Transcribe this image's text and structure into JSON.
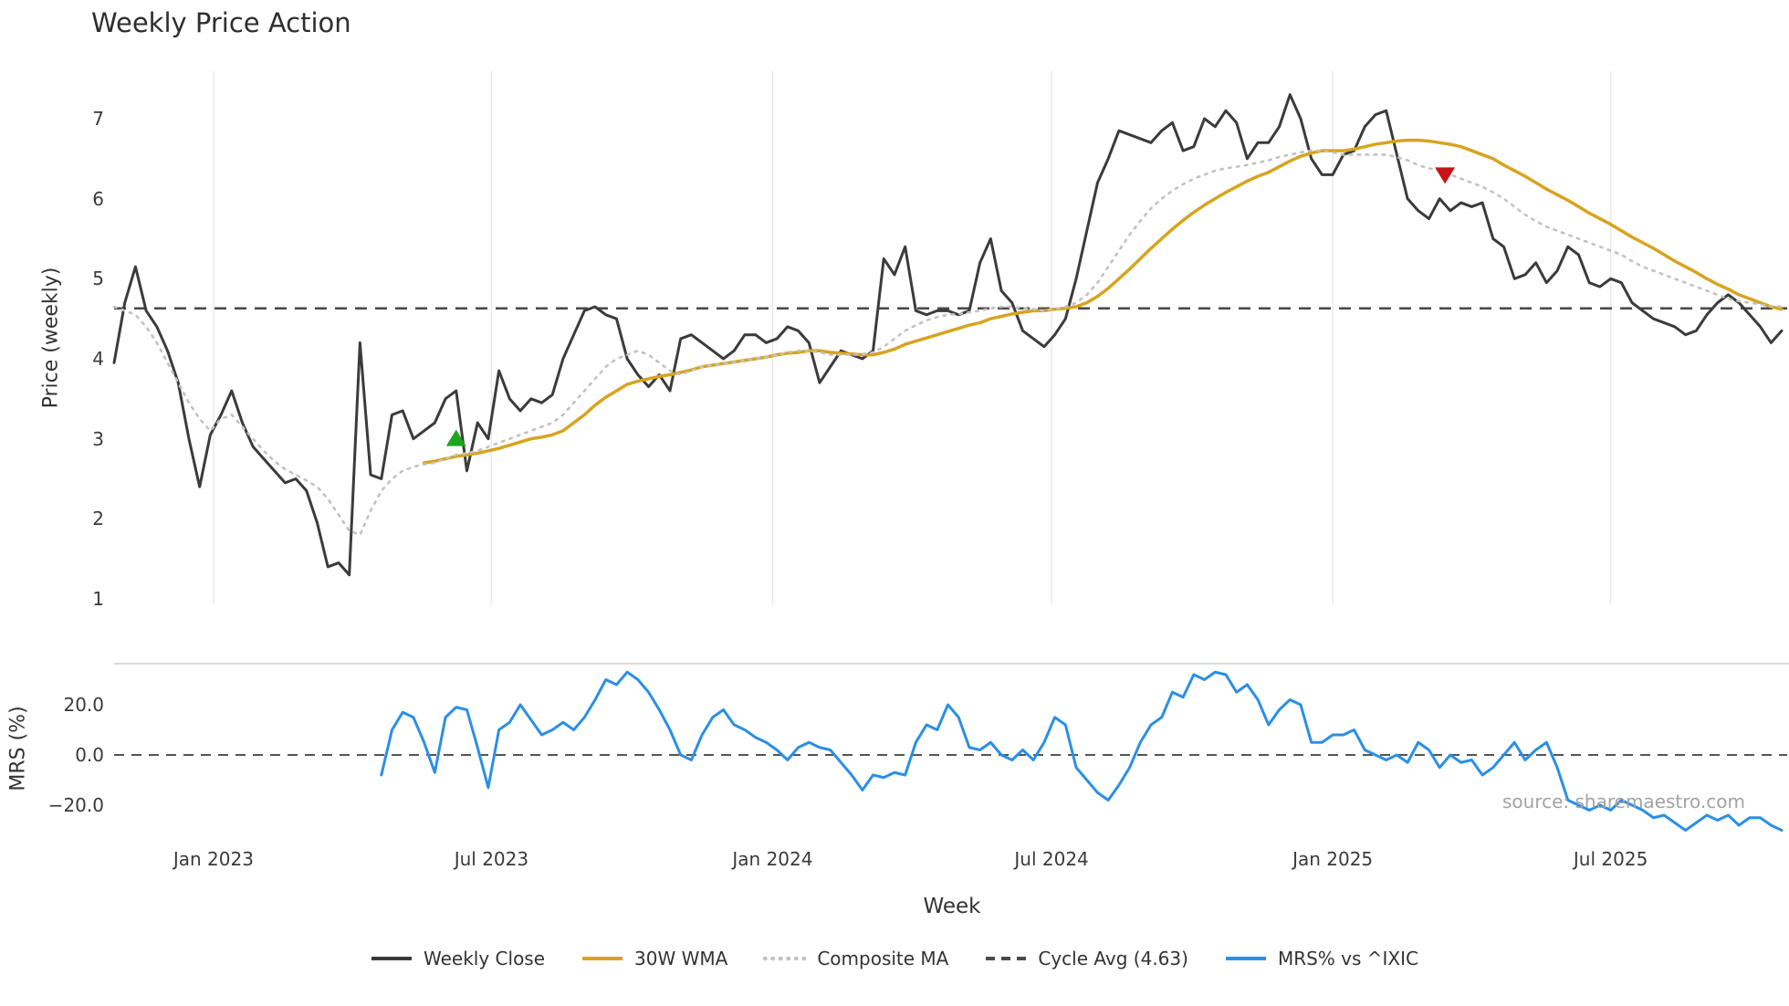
{
  "watermark": "source: sharemaestro.com",
  "chart_data": {
    "type": "line",
    "title": "Weekly Price Action",
    "xlabel": "Week",
    "ylabels": {
      "price": "Price (weekly)",
      "mrs": "MRS (%)"
    },
    "x_unit": "week-index",
    "price_ylim": [
      0.85,
      7.6
    ],
    "mrs_ylim": [
      -32,
      37
    ],
    "grid": "vertical lines at x ticks (price panel only)",
    "legend_position": "bottom-center",
    "x_ticks": [
      {
        "index": 9.3,
        "label": "Jan 2023"
      },
      {
        "index": 35.3,
        "label": "Jul 2023"
      },
      {
        "index": 61.6,
        "label": "Jan 2024"
      },
      {
        "index": 87.7,
        "label": "Jul 2024"
      },
      {
        "index": 114.0,
        "label": "Jan 2025"
      },
      {
        "index": 140.0,
        "label": "Jul 2025"
      }
    ],
    "price_ticks": [
      {
        "value": 7,
        "label": "7"
      },
      {
        "value": 6,
        "label": "6"
      },
      {
        "value": 5,
        "label": "5"
      },
      {
        "value": 4,
        "label": "4"
      },
      {
        "value": 3,
        "label": "3"
      },
      {
        "value": 2,
        "label": "2"
      },
      {
        "value": 1,
        "label": "1"
      }
    ],
    "mrs_ticks": [
      {
        "value": 20,
        "label": "20.0"
      },
      {
        "value": 0,
        "label": "0.0"
      },
      {
        "value": -20,
        "label": "−20.0"
      }
    ],
    "cycle_avg": {
      "label": "Cycle Avg (4.63)",
      "value": 4.63,
      "color": "#4a4a4a",
      "style": "dashed"
    },
    "markers": [
      {
        "name": "buy-signal",
        "shape": "triangle-up",
        "color": "#1ea41e",
        "index": 32,
        "value": 3.0
      },
      {
        "name": "sell-signal",
        "shape": "triangle-down",
        "color": "#c81414",
        "index": 124.5,
        "value": 6.3
      }
    ],
    "series": [
      {
        "name": "Weekly Close",
        "color": "#3b3b3b",
        "style": "solid",
        "panel": "price",
        "values": [
          3.95,
          4.7,
          5.15,
          4.6,
          4.4,
          4.1,
          3.7,
          3.0,
          2.4,
          3.05,
          3.3,
          3.6,
          3.2,
          2.9,
          2.75,
          2.6,
          2.45,
          2.5,
          2.35,
          1.95,
          1.4,
          1.45,
          1.3,
          4.2,
          2.55,
          2.5,
          3.3,
          3.35,
          3.0,
          3.1,
          3.2,
          3.5,
          3.6,
          2.6,
          3.2,
          3.0,
          3.85,
          3.5,
          3.35,
          3.5,
          3.45,
          3.55,
          4.0,
          4.3,
          4.6,
          4.65,
          4.55,
          4.5,
          4.0,
          3.8,
          3.65,
          3.8,
          3.6,
          4.25,
          4.3,
          4.2,
          4.1,
          4.0,
          4.1,
          4.3,
          4.3,
          4.2,
          4.25,
          4.4,
          4.35,
          4.2,
          3.7,
          3.9,
          4.1,
          4.05,
          4.0,
          4.1,
          5.25,
          5.05,
          5.4,
          4.6,
          4.55,
          4.6,
          4.6,
          4.55,
          4.6,
          5.2,
          5.5,
          4.85,
          4.7,
          4.35,
          4.25,
          4.15,
          4.3,
          4.5,
          5.0,
          5.6,
          6.2,
          6.5,
          6.85,
          6.8,
          6.75,
          6.7,
          6.85,
          6.95,
          6.6,
          6.65,
          7.0,
          6.9,
          7.1,
          6.95,
          6.5,
          6.7,
          6.7,
          6.9,
          7.3,
          7.0,
          6.5,
          6.3,
          6.3,
          6.55,
          6.6,
          6.9,
          7.05,
          7.1,
          6.55,
          6.0,
          5.85,
          5.75,
          6.0,
          5.85,
          5.95,
          5.9,
          5.95,
          5.5,
          5.4,
          5.0,
          5.05,
          5.2,
          4.95,
          5.1,
          5.4,
          5.3,
          4.95,
          4.9,
          5.0,
          4.95,
          4.7,
          4.6,
          4.5,
          4.45,
          4.4,
          4.3,
          4.35,
          4.55,
          4.7,
          4.8,
          4.7,
          4.55,
          4.4,
          4.2,
          4.35
        ]
      },
      {
        "name": "30W WMA",
        "color": "#d7a41e",
        "style": "solid",
        "panel": "price",
        "values": [
          null,
          null,
          null,
          null,
          null,
          null,
          null,
          null,
          null,
          null,
          null,
          null,
          null,
          null,
          null,
          null,
          null,
          null,
          null,
          null,
          null,
          null,
          null,
          null,
          null,
          null,
          null,
          null,
          null,
          2.7,
          2.72,
          2.75,
          2.78,
          2.8,
          2.82,
          2.85,
          2.88,
          2.92,
          2.96,
          3.0,
          3.02,
          3.05,
          3.1,
          3.2,
          3.3,
          3.42,
          3.52,
          3.6,
          3.68,
          3.72,
          3.75,
          3.78,
          3.8,
          3.83,
          3.86,
          3.9,
          3.92,
          3.94,
          3.96,
          3.98,
          4.0,
          4.02,
          4.05,
          4.07,
          4.08,
          4.1,
          4.1,
          4.08,
          4.07,
          4.06,
          4.05,
          4.05,
          4.08,
          4.12,
          4.18,
          4.22,
          4.26,
          4.3,
          4.34,
          4.38,
          4.42,
          4.45,
          4.5,
          4.53,
          4.56,
          4.58,
          4.6,
          4.6,
          4.62,
          4.63,
          4.65,
          4.7,
          4.78,
          4.88,
          5.0,
          5.12,
          5.25,
          5.38,
          5.5,
          5.62,
          5.73,
          5.83,
          5.92,
          6.0,
          6.08,
          6.15,
          6.22,
          6.28,
          6.33,
          6.4,
          6.47,
          6.53,
          6.57,
          6.6,
          6.6,
          6.6,
          6.62,
          6.65,
          6.68,
          6.7,
          6.72,
          6.73,
          6.73,
          6.72,
          6.7,
          6.68,
          6.65,
          6.6,
          6.55,
          6.5,
          6.42,
          6.35,
          6.28,
          6.2,
          6.12,
          6.05,
          5.98,
          5.9,
          5.82,
          5.75,
          5.68,
          5.6,
          5.52,
          5.45,
          5.38,
          5.3,
          5.22,
          5.15,
          5.08,
          5.0,
          4.93,
          4.87,
          4.8,
          4.75,
          4.7,
          4.65,
          4.62
        ]
      },
      {
        "name": "Composite MA",
        "color": "#c2c2c2",
        "style": "dotted",
        "panel": "price",
        "values": [
          4.65,
          4.6,
          4.55,
          4.4,
          4.2,
          3.95,
          3.7,
          3.45,
          3.25,
          3.1,
          3.25,
          3.3,
          3.15,
          3.0,
          2.85,
          2.72,
          2.62,
          2.55,
          2.48,
          2.4,
          2.25,
          2.05,
          1.85,
          1.8,
          2.1,
          2.35,
          2.5,
          2.6,
          2.65,
          2.68,
          2.7,
          2.75,
          2.8,
          2.82,
          2.85,
          2.9,
          2.95,
          3.0,
          3.05,
          3.1,
          3.15,
          3.2,
          3.3,
          3.45,
          3.6,
          3.75,
          3.9,
          4.0,
          4.05,
          4.1,
          4.05,
          3.95,
          3.85,
          3.8,
          3.85,
          3.9,
          3.92,
          3.94,
          3.96,
          3.98,
          4.0,
          4.02,
          4.05,
          4.08,
          4.1,
          4.1,
          4.08,
          4.05,
          4.05,
          4.05,
          4.06,
          4.08,
          4.15,
          4.25,
          4.35,
          4.42,
          4.48,
          4.52,
          4.55,
          4.56,
          4.58,
          4.6,
          4.63,
          4.65,
          4.65,
          4.63,
          4.62,
          4.6,
          4.62,
          4.65,
          4.7,
          4.8,
          4.95,
          5.15,
          5.35,
          5.55,
          5.72,
          5.88,
          6.0,
          6.1,
          6.18,
          6.25,
          6.3,
          6.35,
          6.38,
          6.4,
          6.42,
          6.45,
          6.48,
          6.52,
          6.55,
          6.58,
          6.6,
          6.6,
          6.58,
          6.55,
          6.55,
          6.55,
          6.55,
          6.55,
          6.52,
          6.48,
          6.42,
          6.38,
          6.35,
          6.3,
          6.25,
          6.2,
          6.15,
          6.08,
          6.0,
          5.9,
          5.8,
          5.72,
          5.65,
          5.6,
          5.55,
          5.5,
          5.45,
          5.4,
          5.35,
          5.3,
          5.22,
          5.15,
          5.1,
          5.05,
          5.0,
          4.95,
          4.9,
          4.85,
          4.8,
          4.75,
          4.72,
          4.7,
          4.68,
          4.66,
          4.65
        ]
      },
      {
        "name": "MRS% vs ^IXIC",
        "color": "#2b8fe6",
        "style": "solid",
        "panel": "mrs",
        "values": [
          null,
          null,
          null,
          null,
          null,
          null,
          null,
          null,
          null,
          null,
          null,
          null,
          null,
          null,
          null,
          null,
          null,
          null,
          null,
          null,
          null,
          null,
          null,
          null,
          null,
          -8,
          10,
          17,
          15,
          5,
          -7,
          15,
          19,
          18,
          3,
          -13,
          10,
          13,
          20,
          14,
          8,
          10,
          13,
          10,
          15,
          22,
          30,
          28,
          33,
          30,
          25,
          18,
          10,
          0,
          -2,
          8,
          15,
          18,
          12,
          10,
          7,
          5,
          2,
          -2,
          3,
          5,
          3,
          2,
          -3,
          -8,
          -14,
          -8,
          -9,
          -7,
          -8,
          5,
          12,
          10,
          20,
          15,
          3,
          2,
          5,
          0,
          -2,
          2,
          -2,
          5,
          15,
          12,
          -5,
          -10,
          -15,
          -18,
          -12,
          -5,
          5,
          12,
          15,
          25,
          23,
          32,
          30,
          33,
          32,
          25,
          28,
          22,
          12,
          18,
          22,
          20,
          5,
          5,
          8,
          8,
          10,
          2,
          0,
          -2,
          0,
          -3,
          5,
          2,
          -5,
          0,
          -3,
          -2,
          -8,
          -5,
          0,
          5,
          -2,
          2,
          5,
          -5,
          -18,
          -20,
          -22,
          -20,
          -22,
          -18,
          -20,
          -22,
          -25,
          -24,
          -27,
          -30,
          -27,
          -24,
          -26,
          -24,
          -28,
          -25,
          -25,
          -28,
          -30
        ]
      }
    ],
    "legend": [
      {
        "label": "Weekly Close",
        "color": "#3b3b3b",
        "dash": "solid"
      },
      {
        "label": "30W WMA",
        "color": "#d7a41e",
        "dash": "solid"
      },
      {
        "label": "Composite MA",
        "color": "#c2c2c2",
        "dash": "dotted"
      },
      {
        "label": "Cycle Avg (4.63)",
        "color": "#4a4a4a",
        "dash": "dashed"
      },
      {
        "label": "MRS% vs ^IXIC",
        "color": "#2b8fe6",
        "dash": "solid"
      }
    ]
  }
}
